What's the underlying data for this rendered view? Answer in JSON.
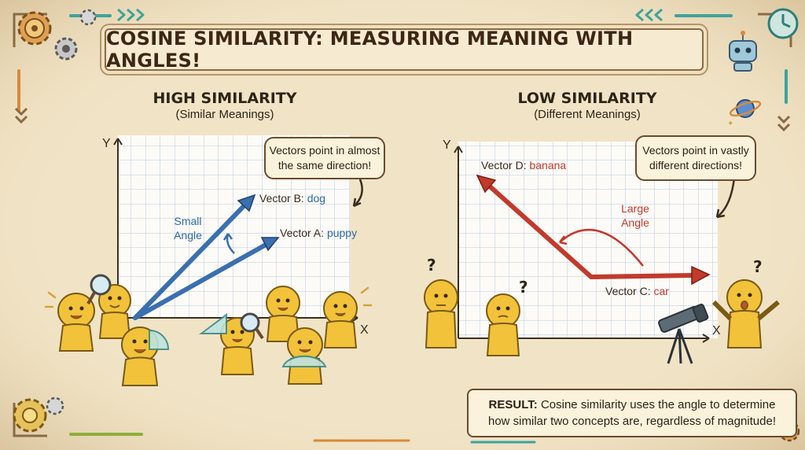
{
  "title": "COSINE SIMILARITY: MEASURING MEANING WITH ANGLES!",
  "left_panel": {
    "heading": "HIGH SIMILARITY",
    "subheading": "(Similar Meanings)",
    "callout": "Vectors point in almost the same direction!",
    "angle_label": "Small Angle",
    "vector_b_prefix": "Vector B: ",
    "vector_b_word": "dog",
    "vector_a_prefix": "Vector A: ",
    "vector_a_word": "puppy",
    "y_axis": "Y",
    "x_axis": "X"
  },
  "right_panel": {
    "heading": "LOW SIMILARITY",
    "subheading": "(Different Meanings)",
    "callout": "Vectors point in vastly different directions!",
    "angle_label": "Large Angle",
    "vector_d_prefix": "Vector D: ",
    "vector_d_word": "banana",
    "vector_c_prefix": "Vector C: ",
    "vector_c_word": "car",
    "y_axis": "Y",
    "x_axis": "X"
  },
  "result": {
    "label": "RESULT:",
    "text": "Cosine similarity uses the angle to determine how similar two concepts are, regardless of magnitude!"
  },
  "colors": {
    "background": "#f1e4c6",
    "grid_line": "#b9c9e2",
    "similar_vector": "#3a6fb0",
    "different_vector": "#c23a2c",
    "word_blue": "#2d6aa6",
    "character": "#f2c23a",
    "character_outline": "#7a5a14",
    "border_accent": "#3fa39a"
  },
  "icons": [
    "gear-icon",
    "robot-icon",
    "planet-icon",
    "clock-icon",
    "chevron-right-icon",
    "magnifier-icon",
    "protractor-icon",
    "telescope-icon"
  ]
}
